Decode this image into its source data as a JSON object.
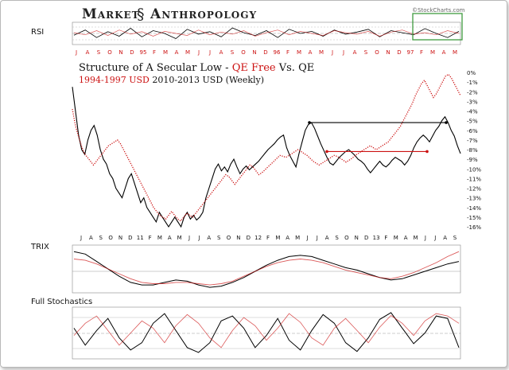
{
  "header": {
    "brand": "Market",
    "brand_glyph": "§",
    "brand2": "Anthropology",
    "watermark": "©StockCharts.com"
  },
  "panels": {
    "rsi_label": "RSI",
    "trix_label": "TRIX",
    "stoch_label": "Full Stochastics"
  },
  "colors": {
    "qe": "#000000",
    "qe_free": "#cc1111",
    "highlight_box": "#3f9b3f",
    "support_line": "#cc1111",
    "resistance_line": "#000000"
  },
  "chart_data": [
    {
      "type": "line",
      "panel": "main",
      "title_part1": "Structure of A Secular Low - ",
      "title_qe_free": "QE Free",
      "title_mid": " Vs. ",
      "title_qe": "QE",
      "subtitle_red": "1994-1997 USD",
      "subtitle_black": " 2010-2013 USD (Weekly)",
      "y_ticks": [
        "0%",
        "-1%",
        "-2%",
        "-3%",
        "-4%",
        "-5%",
        "-6%",
        "-7%",
        "-8%",
        "-9%",
        "-10%",
        "-11%",
        "-12%",
        "-13%",
        "-14%",
        "-15%",
        "-16%"
      ],
      "ylim": [
        -16,
        0
      ],
      "x_top_labels": [
        "J",
        "A",
        "S",
        "O",
        "N",
        "D",
        "95",
        "F",
        "M",
        "A",
        "M",
        "J",
        "J",
        "A",
        "S",
        "O",
        "N",
        "D",
        "96",
        "F",
        "M",
        "A",
        "M",
        "J",
        "J",
        "A",
        "S",
        "O",
        "N",
        "D",
        "97",
        "F",
        "M",
        "A",
        "M"
      ],
      "x_bottom_labels": [
        "J",
        "A",
        "S",
        "O",
        "N",
        "D",
        "11",
        "F",
        "M",
        "A",
        "M",
        "J",
        "J",
        "A",
        "S",
        "O",
        "N",
        "D",
        "12",
        "F",
        "M",
        "A",
        "M",
        "J",
        "J",
        "A",
        "S",
        "O",
        "N",
        "D",
        "13",
        "F",
        "M",
        "A",
        "M",
        "J",
        "J",
        "A",
        "S"
      ],
      "series": [
        {
          "name": "2010-2013 USD",
          "style": "solid",
          "values": [
            -1.5,
            -4,
            -6.5,
            -8,
            -8.5,
            -7,
            -6,
            -5.5,
            -6.5,
            -8,
            -9,
            -9.5,
            -10.5,
            -11,
            -12,
            -12.5,
            -13,
            -12,
            -11,
            -10.5,
            -11.5,
            -12.5,
            -13.5,
            -13,
            -14,
            -14.5,
            -15,
            -15.5,
            -14.5,
            -15,
            -15.5,
            -16,
            -15.5,
            -15,
            -15.5,
            -16,
            -15,
            -14.5,
            -15.2,
            -14.8,
            -15.3,
            -15,
            -14.5,
            -13,
            -12,
            -11,
            -10,
            -9.5,
            -10.2,
            -9.8,
            -10.3,
            -9.5,
            -9,
            -9.8,
            -10.5,
            -10,
            -9.7,
            -10.1,
            -9.8,
            -9.5,
            -9.2,
            -8.8,
            -8.4,
            -8,
            -7.7,
            -7.4,
            -7,
            -6.7,
            -6.5,
            -7.8,
            -8.6,
            -9.2,
            -9.8,
            -8.4,
            -7.2,
            -6,
            -5.4,
            -5.2,
            -5.8,
            -6.6,
            -7.4,
            -8.1,
            -8.8,
            -9.4,
            -9.6,
            -9.2,
            -8.8,
            -8.5,
            -8.2,
            -8,
            -8.3,
            -8.6,
            -9,
            -9.2,
            -9.5,
            -10,
            -10.4,
            -10,
            -9.6,
            -9.2,
            -9.6,
            -9.8,
            -9.5,
            -9.1,
            -8.8,
            -9,
            -9.2,
            -9.6,
            -9.2,
            -8.6,
            -7.8,
            -7.2,
            -6.8,
            -6.5,
            -6.8,
            -7.2,
            -6.6,
            -6,
            -5.6,
            -5,
            -4.6,
            -5.2,
            -6,
            -6.6,
            -7.6,
            -8.4
          ]
        },
        {
          "name": "1994-1997 USD",
          "style": "dotted",
          "values": [
            -3.8,
            -5.5,
            -6.6,
            -7.6,
            -8.4,
            -8.8,
            -9.2,
            -9.6,
            -9.2,
            -8.8,
            -8.4,
            -8,
            -7.6,
            -7.4,
            -7.2,
            -7,
            -7.4,
            -8,
            -8.6,
            -9.2,
            -9.8,
            -10.4,
            -11,
            -11.6,
            -12.2,
            -12.8,
            -13.4,
            -14,
            -14.4,
            -14.8,
            -15,
            -15.2,
            -14.8,
            -14.4,
            -14.8,
            -15.2,
            -15.4,
            -15,
            -14.6,
            -14.8,
            -15,
            -14.6,
            -14.2,
            -13.8,
            -13.4,
            -13,
            -12.6,
            -12.2,
            -11.8,
            -11.4,
            -11,
            -10.6,
            -10.8,
            -11.2,
            -11.6,
            -11.2,
            -10.8,
            -10.4,
            -10,
            -9.6,
            -9.8,
            -10.2,
            -10.6,
            -10.4,
            -10.1,
            -9.8,
            -9.5,
            -9.2,
            -8.9,
            -8.6,
            -8.7,
            -8.8,
            -8.6,
            -8.4,
            -8.2,
            -8,
            -8.2,
            -8.4,
            -8.6,
            -8.9,
            -9.2,
            -9.4,
            -9.6,
            -9.4,
            -9.2,
            -9,
            -8.8,
            -8.6,
            -8.7,
            -8.9,
            -9.1,
            -9.3,
            -9.1,
            -8.9,
            -8.6,
            -8.4,
            -8.2,
            -8,
            -7.8,
            -7.6,
            -7.8,
            -8,
            -7.8,
            -7.6,
            -7.4,
            -7.2,
            -6.8,
            -6.4,
            -6,
            -5.6,
            -5,
            -4.4,
            -3.8,
            -3.2,
            -2.4,
            -1.8,
            -1.2,
            -0.8,
            -1.4,
            -2,
            -2.6,
            -2.2,
            -1.6,
            -1,
            -0.4,
            -0.2,
            -0.6,
            -1.2,
            -1.8,
            -2.4
          ]
        }
      ],
      "annotations": {
        "resistance_level": -5.2,
        "support_level": -8.2
      }
    },
    {
      "type": "line",
      "panel": "rsi",
      "series": [
        {
          "name": "2010-2013 USD",
          "values": [
            45,
            60,
            38,
            55,
            42,
            65,
            40,
            58,
            50,
            35,
            62,
            48,
            55,
            40,
            66,
            52,
            44,
            58,
            38,
            62,
            50,
            56,
            42,
            60,
            48,
            54,
            62,
            40,
            58,
            52,
            46,
            64,
            50,
            38,
            56
          ]
        },
        {
          "name": "1994-1997 USD",
          "values": [
            52,
            46,
            58,
            44,
            60,
            48,
            55,
            42,
            56,
            50,
            44,
            60,
            46,
            54,
            48,
            58,
            42,
            52,
            60,
            46,
            56,
            50,
            44,
            58,
            52,
            48,
            56,
            42,
            54,
            60,
            48,
            52,
            46,
            58,
            50
          ]
        }
      ]
    },
    {
      "type": "line",
      "panel": "trix",
      "series": [
        {
          "name": "2010-2013 USD",
          "values": [
            0.8,
            0.7,
            0.4,
            0.1,
            -0.2,
            -0.45,
            -0.55,
            -0.55,
            -0.45,
            -0.35,
            -0.4,
            -0.55,
            -0.65,
            -0.6,
            -0.45,
            -0.25,
            0,
            0.25,
            0.45,
            0.6,
            0.65,
            0.6,
            0.45,
            0.3,
            0.15,
            0.05,
            -0.1,
            -0.25,
            -0.35,
            -0.3,
            -0.15,
            0,
            0.15,
            0.3,
            0.4
          ]
        },
        {
          "name": "1994-1997 USD",
          "values": [
            0.5,
            0.45,
            0.3,
            0.1,
            -0.1,
            -0.3,
            -0.45,
            -0.5,
            -0.5,
            -0.45,
            -0.45,
            -0.5,
            -0.55,
            -0.5,
            -0.4,
            -0.2,
            0,
            0.2,
            0.35,
            0.45,
            0.5,
            0.45,
            0.35,
            0.2,
            0.05,
            -0.05,
            -0.15,
            -0.25,
            -0.3,
            -0.2,
            -0.05,
            0.15,
            0.35,
            0.6,
            0.8
          ]
        }
      ]
    },
    {
      "type": "line",
      "panel": "stochastics",
      "series": [
        {
          "name": "2010-2013 USD",
          "values": [
            60,
            25,
            55,
            80,
            40,
            15,
            30,
            70,
            90,
            55,
            20,
            10,
            30,
            75,
            85,
            60,
            20,
            45,
            80,
            35,
            15,
            55,
            88,
            70,
            30,
            12,
            40,
            78,
            92,
            60,
            28,
            50,
            85,
            80,
            20
          ]
        },
        {
          "name": "1994-1997 USD",
          "values": [
            45,
            70,
            85,
            55,
            25,
            50,
            75,
            60,
            30,
            65,
            88,
            70,
            40,
            20,
            55,
            82,
            65,
            35,
            60,
            90,
            72,
            40,
            25,
            60,
            80,
            55,
            30,
            62,
            86,
            70,
            45,
            75,
            90,
            85,
            70
          ]
        }
      ]
    }
  ]
}
